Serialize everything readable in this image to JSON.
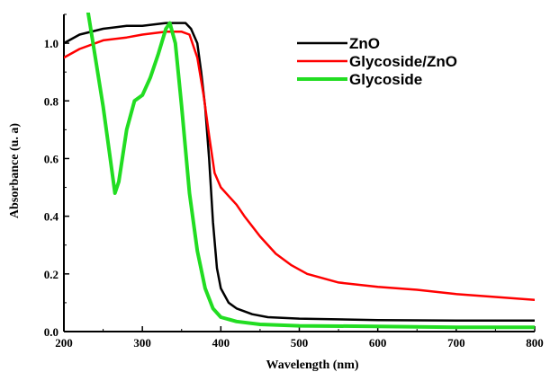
{
  "chart_data": {
    "type": "line",
    "xlabel": "Wavelength (nm)",
    "ylabel": "Absorbance (u. a)",
    "xlim": [
      200,
      800
    ],
    "ylim": [
      0,
      1.1
    ],
    "x_ticks": [
      200,
      300,
      400,
      500,
      600,
      700,
      800
    ],
    "x_tick_labels": [
      "200",
      "300",
      "400",
      "500",
      "600",
      "700",
      "800"
    ],
    "y_ticks": [
      0,
      0.2,
      0.4,
      0.6,
      0.8,
      1.0
    ],
    "y_tick_labels": [
      "0.0",
      "0.2",
      "0.4",
      "0.6",
      "0.8",
      "1.0"
    ],
    "legend_position": "top-right",
    "grid": false,
    "series": [
      {
        "name": "ZnO",
        "color": "#000000",
        "points": [
          [
            200,
            1.0
          ],
          [
            220,
            1.03
          ],
          [
            250,
            1.05
          ],
          [
            280,
            1.06
          ],
          [
            300,
            1.06
          ],
          [
            330,
            1.07
          ],
          [
            345,
            1.07
          ],
          [
            355,
            1.07
          ],
          [
            362,
            1.05
          ],
          [
            370,
            1.0
          ],
          [
            375,
            0.9
          ],
          [
            380,
            0.78
          ],
          [
            385,
            0.6
          ],
          [
            390,
            0.38
          ],
          [
            395,
            0.22
          ],
          [
            400,
            0.15
          ],
          [
            410,
            0.1
          ],
          [
            420,
            0.08
          ],
          [
            440,
            0.06
          ],
          [
            460,
            0.05
          ],
          [
            500,
            0.045
          ],
          [
            600,
            0.04
          ],
          [
            700,
            0.038
          ],
          [
            800,
            0.038
          ]
        ]
      },
      {
        "name": "Glycoside/ZnO",
        "color": "#ff0000",
        "points": [
          [
            200,
            0.95
          ],
          [
            220,
            0.98
          ],
          [
            250,
            1.01
          ],
          [
            280,
            1.02
          ],
          [
            300,
            1.03
          ],
          [
            330,
            1.04
          ],
          [
            350,
            1.04
          ],
          [
            360,
            1.03
          ],
          [
            370,
            0.95
          ],
          [
            378,
            0.82
          ],
          [
            385,
            0.68
          ],
          [
            392,
            0.55
          ],
          [
            400,
            0.5
          ],
          [
            410,
            0.47
          ],
          [
            420,
            0.44
          ],
          [
            430,
            0.4
          ],
          [
            450,
            0.33
          ],
          [
            470,
            0.27
          ],
          [
            490,
            0.23
          ],
          [
            510,
            0.2
          ],
          [
            550,
            0.17
          ],
          [
            600,
            0.155
          ],
          [
            650,
            0.145
          ],
          [
            700,
            0.13
          ],
          [
            750,
            0.12
          ],
          [
            800,
            0.11
          ]
        ]
      },
      {
        "name": "Glycoside",
        "color": "#22dd22",
        "points": [
          [
            230,
            1.12
          ],
          [
            240,
            0.95
          ],
          [
            250,
            0.78
          ],
          [
            258,
            0.62
          ],
          [
            265,
            0.48
          ],
          [
            270,
            0.52
          ],
          [
            280,
            0.7
          ],
          [
            290,
            0.8
          ],
          [
            300,
            0.82
          ],
          [
            310,
            0.88
          ],
          [
            320,
            0.96
          ],
          [
            330,
            1.05
          ],
          [
            335,
            1.07
          ],
          [
            342,
            1.0
          ],
          [
            350,
            0.78
          ],
          [
            360,
            0.48
          ],
          [
            370,
            0.28
          ],
          [
            380,
            0.15
          ],
          [
            390,
            0.08
          ],
          [
            400,
            0.05
          ],
          [
            420,
            0.035
          ],
          [
            450,
            0.025
          ],
          [
            500,
            0.02
          ],
          [
            600,
            0.018
          ],
          [
            700,
            0.015
          ],
          [
            800,
            0.015
          ]
        ]
      }
    ]
  }
}
